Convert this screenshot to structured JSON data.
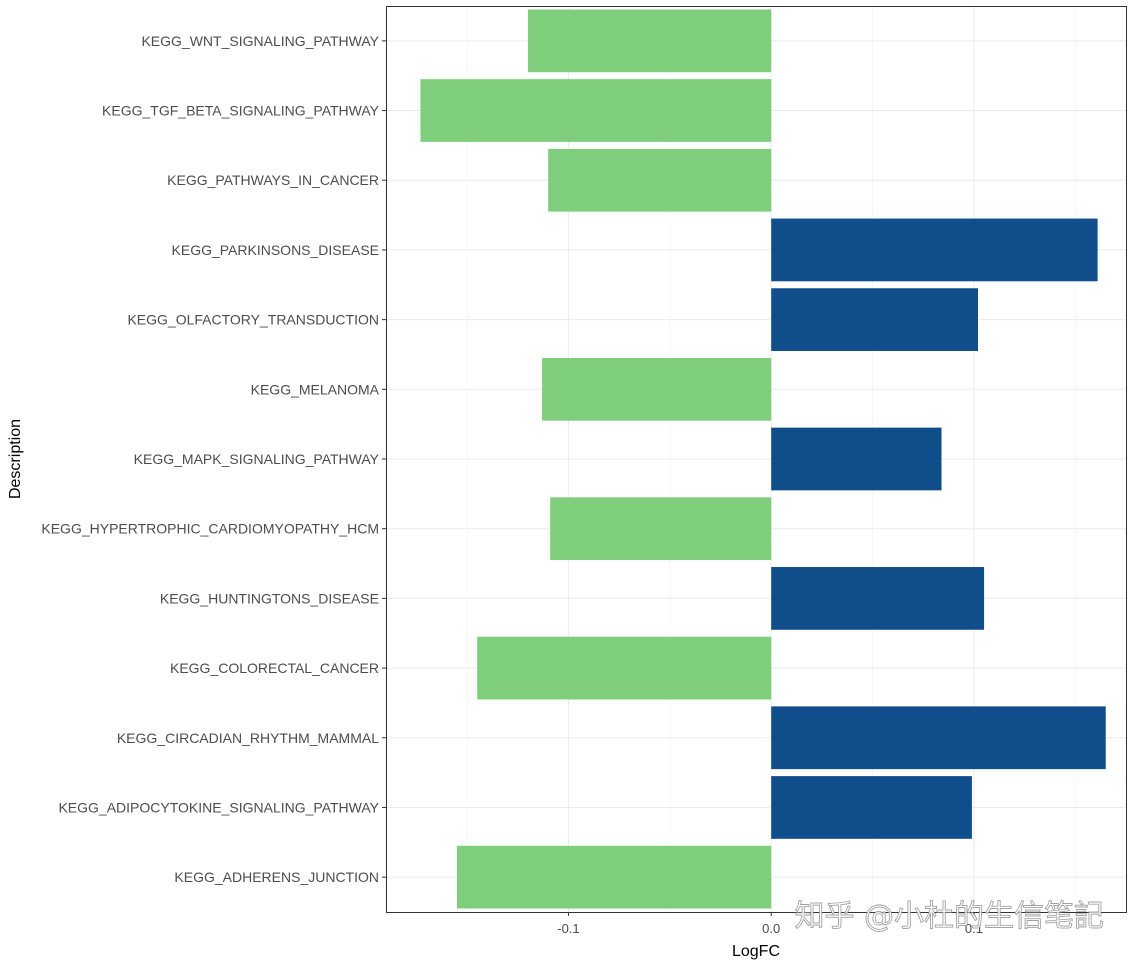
{
  "watermark": "知乎 @小杜的生信笔記",
  "colors": {
    "negative": "#7fce7c",
    "positive": "#104e8b"
  },
  "chart_data": {
    "type": "bar",
    "orientation": "horizontal",
    "title": "",
    "xlabel": "LogFC",
    "ylabel": "Description",
    "xlim": [
      -0.19,
      0.175
    ],
    "x_ticks": [
      {
        "value": -0.1,
        "label": "-0.1"
      },
      {
        "value": 0.0,
        "label": "0.0"
      },
      {
        "value": 0.1,
        "label": "0.1"
      }
    ],
    "grid": true,
    "categories": [
      "KEGG_WNT_SIGNALING_PATHWAY",
      "KEGG_TGF_BETA_SIGNALING_PATHWAY",
      "KEGG_PATHWAYS_IN_CANCER",
      "KEGG_PARKINSONS_DISEASE",
      "KEGG_OLFACTORY_TRANSDUCTION",
      "KEGG_MELANOMA",
      "KEGG_MAPK_SIGNALING_PATHWAY",
      "KEGG_HYPERTROPHIC_CARDIOMYOPATHY_HCM",
      "KEGG_HUNTINGTONS_DISEASE",
      "KEGG_COLORECTAL_CANCER",
      "KEGG_CIRCADIAN_RHYTHM_MAMMAL",
      "KEGG_ADIPOCYTOKINE_SIGNALING_PATHWAY",
      "KEGG_ADHERENS_JUNCTION"
    ],
    "values": [
      -0.12,
      -0.173,
      -0.11,
      0.161,
      0.102,
      -0.113,
      0.084,
      -0.109,
      0.105,
      -0.145,
      0.165,
      0.099,
      -0.155
    ]
  }
}
